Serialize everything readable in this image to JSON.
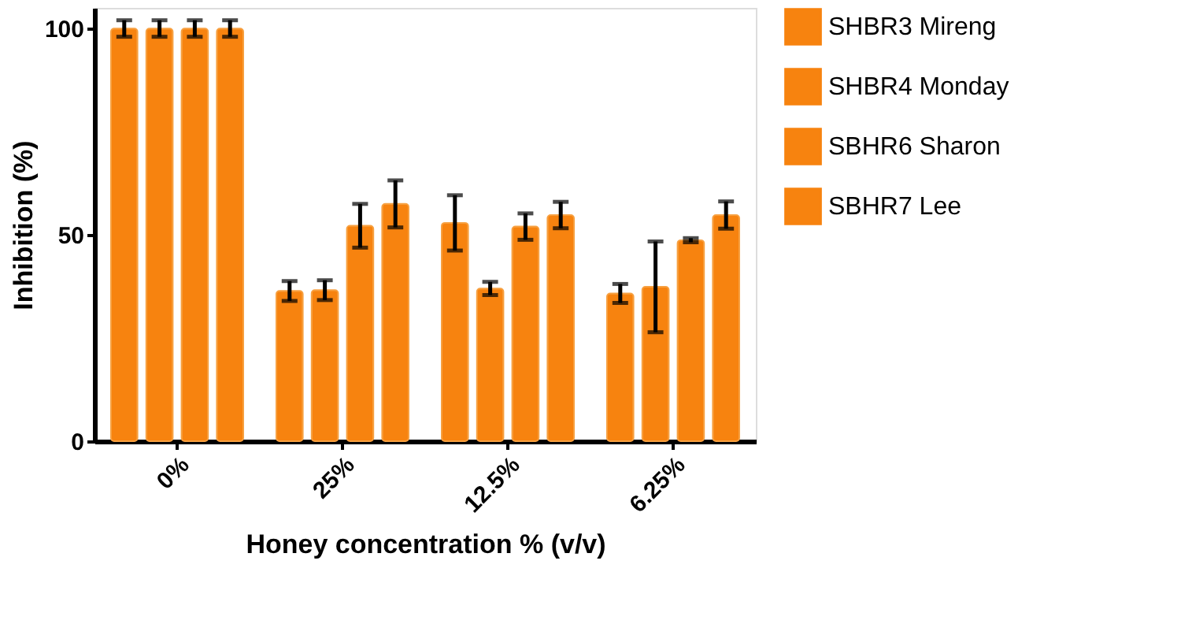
{
  "chart_data": {
    "type": "bar",
    "xlabel": "Honey concentration % (v/v)",
    "ylabel": "Inhibition (%)",
    "categories": [
      "0%",
      "25%",
      "12.5%",
      "6.25%"
    ],
    "series": [
      {
        "name": "SHBR3 Mireng",
        "color": "#f7830f",
        "values": [
          100,
          36.4,
          52.9,
          35.8
        ],
        "errors": [
          2,
          2.4,
          6.7,
          2.3
        ]
      },
      {
        "name": "SHBR4 Monday",
        "color": "#f7830f",
        "values": [
          100,
          36.6,
          37,
          37.4
        ],
        "errors": [
          2,
          2.4,
          1.6,
          11
        ]
      },
      {
        "name": "SBHR6 Sharon",
        "color": "#f7830f",
        "values": [
          100,
          52.2,
          52,
          48.7
        ],
        "errors": [
          2,
          5.3,
          3.2,
          0.5
        ]
      },
      {
        "name": "SBHR7 Lee",
        "color": "#f7830f",
        "values": [
          100,
          57.5,
          54.8,
          54.8
        ],
        "errors": [
          2,
          5.7,
          3.2,
          3.3
        ]
      }
    ],
    "ylim": [
      0,
      105
    ],
    "yticks": [
      0,
      50,
      100
    ],
    "grid": false,
    "legend": "top right"
  }
}
